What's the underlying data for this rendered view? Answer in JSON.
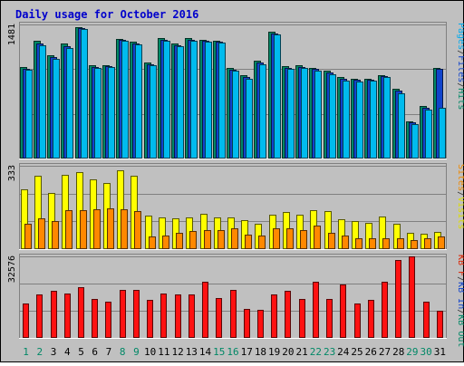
{
  "chart_data": {
    "type": "bar",
    "title": "Daily usage for October 2016",
    "categories": [
      "1",
      "2",
      "3",
      "4",
      "5",
      "6",
      "7",
      "8",
      "9",
      "10",
      "11",
      "12",
      "13",
      "14",
      "15",
      "16",
      "17",
      "18",
      "19",
      "20",
      "21",
      "22",
      "23",
      "24",
      "25",
      "26",
      "27",
      "28",
      "29",
      "30",
      "31"
    ],
    "weekend_days": [
      "1",
      "2",
      "8",
      "9",
      "15",
      "16",
      "22",
      "23",
      "29",
      "30"
    ],
    "panels": [
      {
        "name": "hits-files-pages",
        "max_label": "1481",
        "ylim": [
          0,
          1481
        ],
        "side_label": [
          "Pages",
          "/",
          "Files",
          "/",
          "Hits"
        ],
        "side_label_colors": [
          "#00aaee",
          "#333333",
          "#1144cc",
          "#333333",
          "#008866"
        ],
        "series": [
          {
            "name": "Hits",
            "color": "#008866",
            "values": [
              1010,
              1300,
              1140,
              1270,
              1450,
              1035,
              1030,
              1325,
              1295,
              1065,
              1335,
              1275,
              1330,
              1310,
              1305,
              1000,
              920,
              1080,
              1400,
              1025,
              1030,
              1005,
              970,
              900,
              885,
              880,
              925,
              770,
              415,
              580,
              1000
            ]
          },
          {
            "name": "Files",
            "color": "#1144cc",
            "values": [
              990,
              1275,
              1120,
              1245,
              1440,
              1015,
              1020,
              1310,
              1275,
              1045,
              1310,
              1255,
              1310,
              1300,
              1290,
              985,
              905,
              1060,
              1385,
              1005,
              1010,
              990,
              950,
              880,
              870,
              870,
              910,
              750,
              400,
              560,
              990
            ]
          },
          {
            "name": "Pages",
            "color": "#00bbee",
            "values": [
              985,
              1255,
              1100,
              1225,
              1431,
              1000,
              1015,
              1300,
              1265,
              1030,
              1300,
              1240,
              1300,
              1290,
              1280,
              970,
              885,
              1045,
              1370,
              990,
              1000,
              975,
              935,
              865,
              855,
              865,
              905,
              725,
              385,
              545,
              560
            ]
          }
        ]
      },
      {
        "name": "visits-sites",
        "max_label": "333",
        "ylim": [
          0,
          333
        ],
        "side_label": [
          "Sites",
          "/",
          "Visits"
        ],
        "side_label_colors": [
          "#ee8800",
          "#333333",
          "#dddd00"
        ],
        "series": [
          {
            "name": "Visits",
            "color": "#ffff00",
            "values": [
              238,
              292,
              226,
              298,
              306,
              280,
              264,
              314,
              294,
              135,
              128,
              124,
              126,
              140,
              126,
              128,
              115,
              100,
              136,
              150,
              136,
              155,
              152,
              120,
              112,
              104,
              131,
              102,
              65,
              60,
              70
            ]
          },
          {
            "name": "Sites",
            "color": "#ff8800",
            "values": [
              102,
              124,
              112,
              156,
              155,
              161,
              164,
              160,
              152,
              52,
              55,
              65,
              71,
              75,
              75,
              82,
              58,
              54,
              82,
              82,
              75,
              94,
              65,
              55,
              45,
              45,
              42,
              42,
              38,
              42,
              50
            ]
          }
        ]
      },
      {
        "name": "kbytes",
        "max_label": "32576",
        "ylim": [
          0,
          32576
        ],
        "side_label": [
          "KB F",
          "/",
          "KB In",
          "/",
          "KB Out"
        ],
        "side_label_colors": [
          "#dd2200",
          "#333333",
          "#1144cc",
          "#333333",
          "#008866"
        ],
        "series": [
          {
            "name": "KB F",
            "color": "#ff1111",
            "values": [
              13700,
              17400,
              18700,
              17800,
              20300,
              15600,
              14300,
              19300,
              19300,
              15100,
              17800,
              17400,
              17400,
              22500,
              15900,
              19200,
              11700,
              11400,
              17500,
              18700,
              15700,
              22300,
              15500,
              21300,
              13700,
              15300,
              22300,
              31300,
              32576,
              14400,
              10700
            ]
          }
        ]
      }
    ]
  }
}
